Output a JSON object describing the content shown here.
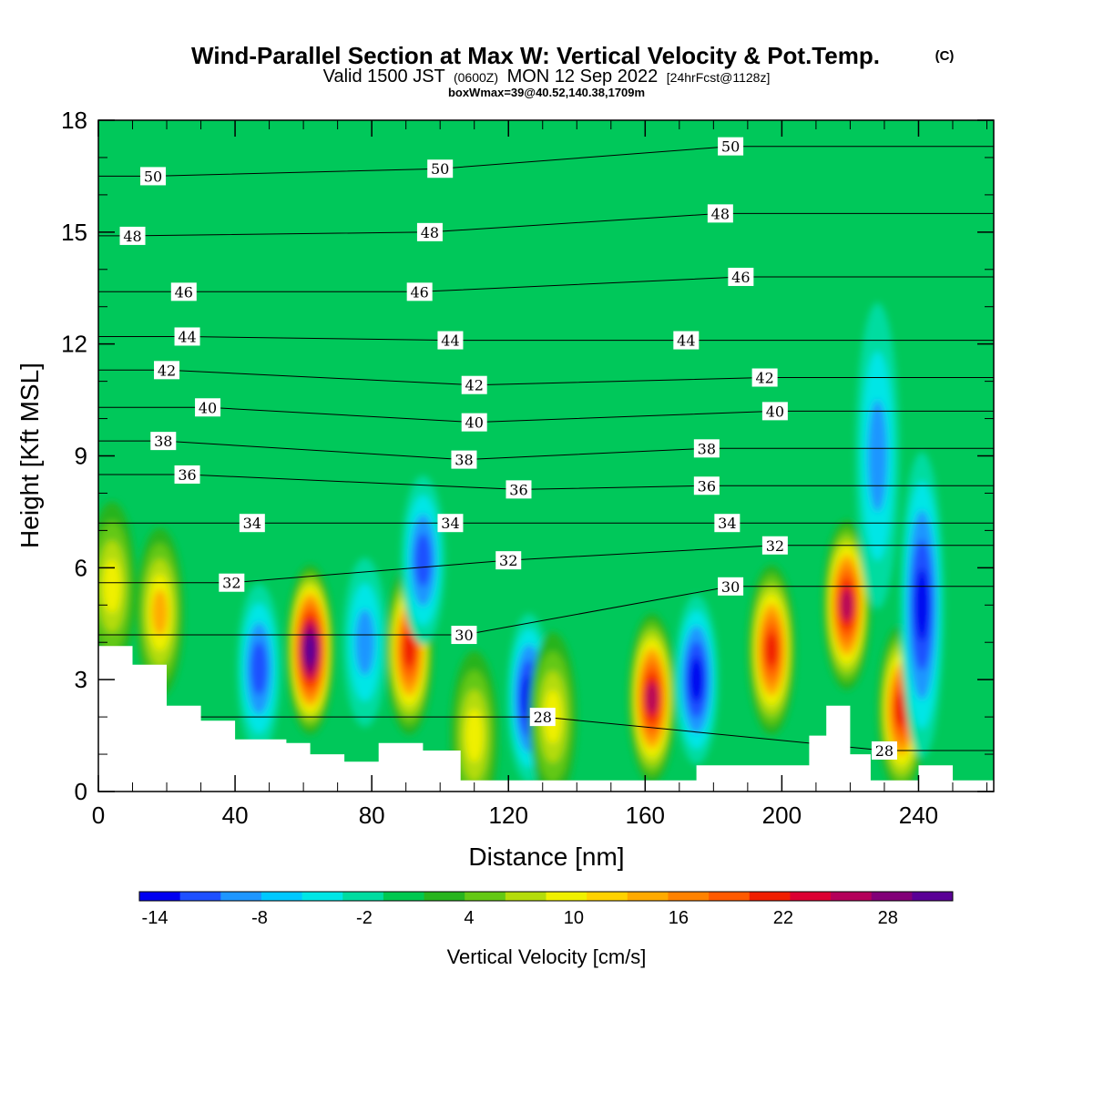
{
  "chart_data": {
    "type": "heatmap",
    "title": "Wind-Parallel Section at Max W: Vertical Velocity & Pot.Temp.",
    "title_mark": "(C)",
    "subtitle": {
      "valid": "Valid 1500 JST",
      "zulu": "(0600Z)",
      "date": "MON 12 Sep 2022",
      "forecast": "[24hrFcst@1128z]"
    },
    "box_info": "boxWmax=39@40.52,140.38,1709m",
    "xlabel": "Distance [nm]",
    "ylabel": "Height [Kft MSL]",
    "xlim": [
      0,
      262
    ],
    "ylim": [
      0,
      18
    ],
    "x_ticks": [
      "0",
      "40",
      "80",
      "120",
      "160",
      "200",
      "240"
    ],
    "y_ticks": [
      "0",
      "3",
      "6",
      "9",
      "12",
      "15",
      "18"
    ],
    "colorbar": {
      "label": "Vertical Velocity [cm/s]",
      "tick_labels": [
        "-14",
        "-8",
        "-2",
        "4",
        "10",
        "16",
        "22",
        "28"
      ],
      "colors": [
        "#0000f0",
        "#1e50ff",
        "#1e96ff",
        "#00c8ff",
        "#00e6e6",
        "#00dca0",
        "#00c850",
        "#28b41e",
        "#64c814",
        "#b4dc0a",
        "#f0f000",
        "#ffd200",
        "#ffaa00",
        "#ff8200",
        "#ff5a00",
        "#f01e00",
        "#dc0032",
        "#b4005a",
        "#820078",
        "#5a0096"
      ]
    },
    "vertical_velocity_features": [
      {
        "x": 4,
        "z": 5.5,
        "value": 10
      },
      {
        "x": 18,
        "z": 4.8,
        "value": 11
      },
      {
        "x": 47,
        "z": 3.3,
        "value": -8
      },
      {
        "x": 62,
        "z": 3.8,
        "value": 30
      },
      {
        "x": 78,
        "z": 4.0,
        "value": -6
      },
      {
        "x": 91,
        "z": 3.8,
        "value": 22
      },
      {
        "x": 95,
        "z": 6.2,
        "value": -10
      },
      {
        "x": 110,
        "z": 1.5,
        "value": 8
      },
      {
        "x": 126,
        "z": 2.5,
        "value": -12
      },
      {
        "x": 133,
        "z": 2.0,
        "value": 10
      },
      {
        "x": 162,
        "z": 2.5,
        "value": 24
      },
      {
        "x": 175,
        "z": 3.0,
        "value": -12
      },
      {
        "x": 197,
        "z": 3.8,
        "value": 22
      },
      {
        "x": 219,
        "z": 5.0,
        "value": 24
      },
      {
        "x": 228,
        "z": 9.0,
        "value": -5
      },
      {
        "x": 235,
        "z": 2.2,
        "value": 20
      },
      {
        "x": 241,
        "z": 5.0,
        "value": -11
      }
    ],
    "terrain_kft": [
      {
        "x": 0,
        "z": 3.9
      },
      {
        "x": 10,
        "z": 3.4
      },
      {
        "x": 20,
        "z": 2.3
      },
      {
        "x": 30,
        "z": 1.9
      },
      {
        "x": 40,
        "z": 1.4
      },
      {
        "x": 55,
        "z": 1.3
      },
      {
        "x": 62,
        "z": 1.0
      },
      {
        "x": 72,
        "z": 0.8
      },
      {
        "x": 82,
        "z": 1.3
      },
      {
        "x": 95,
        "z": 1.1
      },
      {
        "x": 106,
        "z": 0.3
      },
      {
        "x": 120,
        "z": 0.3
      },
      {
        "x": 140,
        "z": 0.3
      },
      {
        "x": 160,
        "z": 0.3
      },
      {
        "x": 175,
        "z": 0.7
      },
      {
        "x": 200,
        "z": 0.7
      },
      {
        "x": 208,
        "z": 1.5
      },
      {
        "x": 213,
        "z": 2.3
      },
      {
        "x": 220,
        "z": 1.0
      },
      {
        "x": 226,
        "z": 0.3
      },
      {
        "x": 240,
        "z": 0.7
      },
      {
        "x": 250,
        "z": 0.3
      },
      {
        "x": 262,
        "z": 0.3
      }
    ],
    "theta_contour_labels": [
      {
        "text": "50",
        "x": 16,
        "z": 16.5
      },
      {
        "text": "50",
        "x": 100,
        "z": 16.7
      },
      {
        "text": "50",
        "x": 185,
        "z": 17.3
      },
      {
        "text": "48",
        "x": 10,
        "z": 14.9
      },
      {
        "text": "48",
        "x": 97,
        "z": 15.0
      },
      {
        "text": "48",
        "x": 182,
        "z": 15.5
      },
      {
        "text": "46",
        "x": 25,
        "z": 13.4
      },
      {
        "text": "46",
        "x": 94,
        "z": 13.4
      },
      {
        "text": "46",
        "x": 188,
        "z": 13.8
      },
      {
        "text": "44",
        "x": 26,
        "z": 12.2
      },
      {
        "text": "44",
        "x": 103,
        "z": 12.1
      },
      {
        "text": "44",
        "x": 172,
        "z": 12.1
      },
      {
        "text": "42",
        "x": 20,
        "z": 11.3
      },
      {
        "text": "42",
        "x": 110,
        "z": 10.9
      },
      {
        "text": "42",
        "x": 195,
        "z": 11.1
      },
      {
        "text": "40",
        "x": 32,
        "z": 10.3
      },
      {
        "text": "40",
        "x": 110,
        "z": 9.9
      },
      {
        "text": "40",
        "x": 198,
        "z": 10.2
      },
      {
        "text": "38",
        "x": 19,
        "z": 9.4
      },
      {
        "text": "38",
        "x": 107,
        "z": 8.9
      },
      {
        "text": "38",
        "x": 178,
        "z": 9.2
      },
      {
        "text": "36",
        "x": 26,
        "z": 8.5
      },
      {
        "text": "36",
        "x": 123,
        "z": 8.1
      },
      {
        "text": "36",
        "x": 178,
        "z": 8.2
      },
      {
        "text": "34",
        "x": 45,
        "z": 7.2
      },
      {
        "text": "34",
        "x": 103,
        "z": 7.2
      },
      {
        "text": "34",
        "x": 184,
        "z": 7.2
      },
      {
        "text": "32",
        "x": 39,
        "z": 5.6
      },
      {
        "text": "32",
        "x": 120,
        "z": 6.2
      },
      {
        "text": "32",
        "x": 198,
        "z": 6.6
      },
      {
        "text": "30",
        "x": 107,
        "z": 4.2
      },
      {
        "text": "30",
        "x": 185,
        "z": 5.5
      },
      {
        "text": "28",
        "x": 130,
        "z": 2.0
      },
      {
        "text": "28",
        "x": 230,
        "z": 1.1
      }
    ]
  }
}
